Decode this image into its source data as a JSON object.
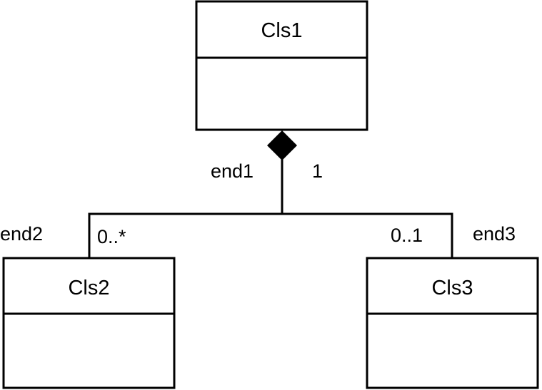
{
  "classes": {
    "cls1": {
      "name": "Cls1"
    },
    "cls2": {
      "name": "Cls2"
    },
    "cls3": {
      "name": "Cls3"
    }
  },
  "association": {
    "kind": "composition",
    "ends": {
      "end1": {
        "role": "end1",
        "multiplicity": "1"
      },
      "end2": {
        "role": "end2",
        "multiplicity": "0..*"
      },
      "end3": {
        "role": "end3",
        "multiplicity": "0..1"
      }
    }
  },
  "colors": {
    "line": "#000000",
    "background": "#ffffff"
  }
}
